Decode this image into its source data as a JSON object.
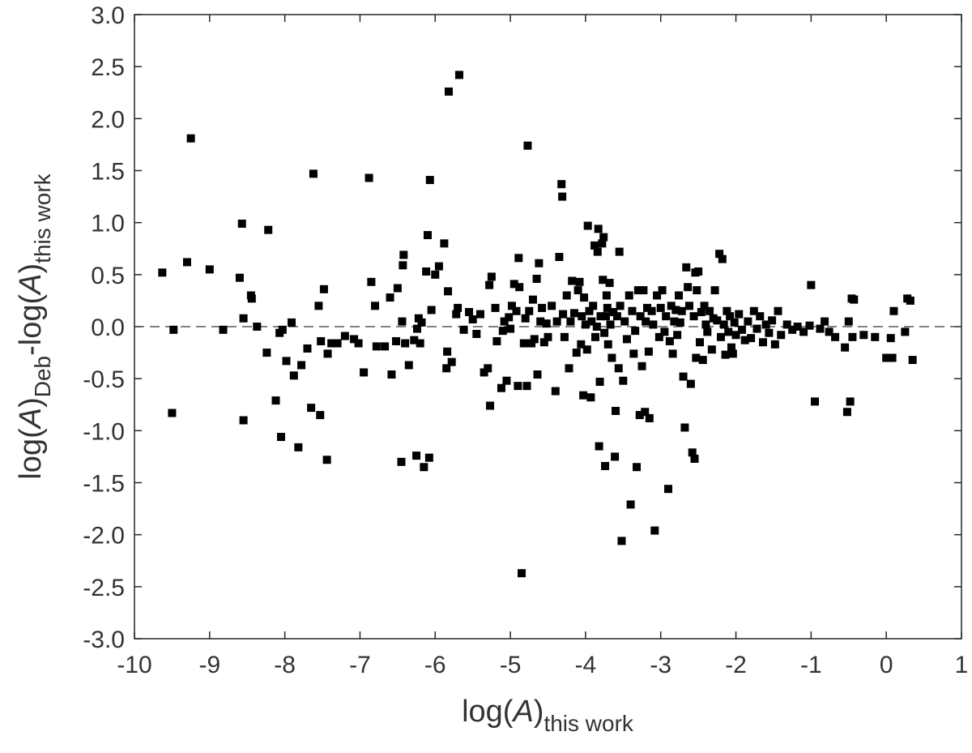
{
  "chart_data": {
    "type": "scatter",
    "xlim": [
      -10,
      1
    ],
    "ylim": [
      -3.0,
      3.0
    ],
    "x_ticks": [
      -10,
      -9,
      -8,
      -7,
      -6,
      -5,
      -4,
      -3,
      -2,
      -1,
      0,
      1
    ],
    "x_tick_labels": [
      "-10",
      "-9",
      "-8",
      "-7",
      "-6",
      "-5",
      "-4",
      "-3",
      "-2",
      "-1",
      "0",
      "1"
    ],
    "y_ticks": [
      3.0,
      2.5,
      2.0,
      1.5,
      1.0,
      0.5,
      0.0,
      -0.5,
      -1.0,
      -1.5,
      -2.0,
      -2.5,
      -3.0
    ],
    "y_tick_labels": [
      "3.0",
      "2.5",
      "2.0",
      "1.5",
      "1.0",
      "0.5",
      "0.0",
      "-0.5",
      "-1.0",
      "-1.5",
      "-2.0",
      "-2.5",
      "-3.0"
    ],
    "xlabel": {
      "main": "log(",
      "italic": "A",
      "close": ")",
      "sub": "this work"
    },
    "ylabel": {
      "main": "log(",
      "italic": "A",
      "close": ")",
      "sub": "Deb",
      "mid": "-log(",
      "italic2": "A",
      "close2": ")",
      "sub2": "this work"
    },
    "reference_line": {
      "y": 0.0,
      "style": "dashed",
      "color": "#000000"
    },
    "grid": false,
    "marker": {
      "shape": "square",
      "color": "#000000"
    },
    "points": [
      [
        -9.63,
        0.52
      ],
      [
        -9.5,
        -0.83
      ],
      [
        -9.48,
        -0.03
      ],
      [
        -9.3,
        0.62
      ],
      [
        -9.25,
        1.81
      ],
      [
        -9.0,
        0.55
      ],
      [
        -8.82,
        -0.03
      ],
      [
        -8.6,
        0.47
      ],
      [
        -8.57,
        0.99
      ],
      [
        -8.55,
        0.08
      ],
      [
        -8.55,
        -0.9
      ],
      [
        -8.45,
        0.3
      ],
      [
        -8.44,
        0.27
      ],
      [
        -8.37,
        0.0
      ],
      [
        -8.24,
        -0.25
      ],
      [
        -8.22,
        0.93
      ],
      [
        -8.12,
        -0.71
      ],
      [
        -8.07,
        -0.06
      ],
      [
        -8.05,
        -1.06
      ],
      [
        -8.03,
        -0.03
      ],
      [
        -7.98,
        -0.33
      ],
      [
        -7.91,
        0.04
      ],
      [
        -7.88,
        -0.47
      ],
      [
        -7.82,
        -1.16
      ],
      [
        -7.78,
        -0.37
      ],
      [
        -7.7,
        -0.21
      ],
      [
        -7.65,
        -0.78
      ],
      [
        -7.62,
        1.47
      ],
      [
        -7.55,
        0.2
      ],
      [
        -7.53,
        -0.85
      ],
      [
        -7.52,
        -0.14
      ],
      [
        -7.48,
        0.36
      ],
      [
        -7.44,
        -1.28
      ],
      [
        -7.43,
        -0.26
      ],
      [
        -7.38,
        -0.16
      ],
      [
        -7.3,
        -0.16
      ],
      [
        -7.2,
        -0.09
      ],
      [
        -7.08,
        -0.12
      ],
      [
        -7.02,
        -0.16
      ],
      [
        -6.95,
        -0.44
      ],
      [
        -6.88,
        1.43
      ],
      [
        -6.85,
        0.43
      ],
      [
        -6.8,
        0.2
      ],
      [
        -6.78,
        -0.19
      ],
      [
        -6.67,
        -0.19
      ],
      [
        -6.6,
        0.28
      ],
      [
        -6.58,
        -0.46
      ],
      [
        -6.52,
        -0.14
      ],
      [
        -6.5,
        0.37
      ],
      [
        -6.45,
        -1.3
      ],
      [
        -6.44,
        0.05
      ],
      [
        -6.43,
        0.59
      ],
      [
        -6.42,
        0.69
      ],
      [
        -6.4,
        -0.16
      ],
      [
        -6.35,
        -0.37
      ],
      [
        -6.28,
        -0.13
      ],
      [
        -6.25,
        -1.24
      ],
      [
        -6.24,
        -0.02
      ],
      [
        -6.22,
        0.08
      ],
      [
        -6.2,
        -0.16
      ],
      [
        -6.18,
        0.04
      ],
      [
        -6.15,
        -1.35
      ],
      [
        -6.12,
        0.53
      ],
      [
        -6.1,
        0.88
      ],
      [
        -6.08,
        -1.26
      ],
      [
        -6.07,
        1.41
      ],
      [
        -6.05,
        0.16
      ],
      [
        -6.0,
        0.5
      ],
      [
        -5.95,
        0.58
      ],
      [
        -5.88,
        0.8
      ],
      [
        -5.85,
        -0.4
      ],
      [
        -5.84,
        -0.24
      ],
      [
        -5.83,
        0.34
      ],
      [
        -5.82,
        2.26
      ],
      [
        -5.78,
        -0.34
      ],
      [
        -5.72,
        0.12
      ],
      [
        -5.7,
        0.18
      ],
      [
        -5.68,
        2.42
      ],
      [
        -5.62,
        -0.03
      ],
      [
        -5.55,
        0.14
      ],
      [
        -5.5,
        0.07
      ],
      [
        -5.45,
        -0.07
      ],
      [
        -5.4,
        0.12
      ],
      [
        -5.35,
        -0.44
      ],
      [
        -5.3,
        -0.4
      ],
      [
        -5.28,
        0.4
      ],
      [
        -5.27,
        -0.76
      ],
      [
        -5.25,
        0.48
      ],
      [
        -5.2,
        0.18
      ],
      [
        -5.18,
        -0.14
      ],
      [
        -5.12,
        -0.59
      ],
      [
        -5.1,
        -0.04
      ],
      [
        -5.08,
        0.05
      ],
      [
        -5.05,
        -0.52
      ],
      [
        -5.02,
        0.09
      ],
      [
        -5.0,
        -0.02
      ],
      [
        -4.98,
        0.2
      ],
      [
        -4.95,
        0.41
      ],
      [
        -4.92,
        0.15
      ],
      [
        -4.9,
        -0.57
      ],
      [
        -4.89,
        0.66
      ],
      [
        -4.88,
        0.38
      ],
      [
        -4.85,
        -2.37
      ],
      [
        -4.82,
        -0.16
      ],
      [
        -4.8,
        0.08
      ],
      [
        -4.78,
        -0.57
      ],
      [
        -4.77,
        1.74
      ],
      [
        -4.75,
        0.15
      ],
      [
        -4.72,
        -0.16
      ],
      [
        -4.7,
        0.26
      ],
      [
        -4.68,
        -0.12
      ],
      [
        -4.65,
        0.46
      ],
      [
        -4.64,
        -0.46
      ],
      [
        -4.62,
        0.61
      ],
      [
        -4.6,
        0.05
      ],
      [
        -4.58,
        0.18
      ],
      [
        -4.55,
        -0.15
      ],
      [
        -4.52,
        0.03
      ],
      [
        -4.5,
        -0.1
      ],
      [
        -4.45,
        0.2
      ],
      [
        -4.4,
        -0.62
      ],
      [
        -4.38,
        0.05
      ],
      [
        -4.35,
        0.67
      ],
      [
        -4.32,
        1.37
      ],
      [
        -4.31,
        1.25
      ],
      [
        -4.3,
        0.12
      ],
      [
        -4.28,
        -0.1
      ],
      [
        -4.25,
        0.3
      ],
      [
        -4.22,
        -0.4
      ],
      [
        -4.2,
        0.05
      ],
      [
        -4.18,
        0.44
      ],
      [
        -4.15,
        0.13
      ],
      [
        -4.12,
        -0.25
      ],
      [
        -4.1,
        0.35
      ],
      [
        -4.08,
        0.43
      ],
      [
        -4.06,
        -0.17
      ],
      [
        -4.05,
        0.1
      ],
      [
        -4.03,
        -0.66
      ],
      [
        -4.02,
        0.28
      ],
      [
        -4.0,
        0.02
      ],
      [
        -3.98,
        -0.22
      ],
      [
        -3.97,
        0.97
      ],
      [
        -3.95,
        0.15
      ],
      [
        -3.93,
        -0.68
      ],
      [
        -3.92,
        0.05
      ],
      [
        -3.9,
        0.2
      ],
      [
        -3.88,
        0.78
      ],
      [
        -3.87,
        -0.1
      ],
      [
        -3.85,
        0.0
      ],
      [
        -3.84,
        0.72
      ],
      [
        -3.83,
        0.94
      ],
      [
        -3.82,
        -1.15
      ],
      [
        -3.81,
        -0.53
      ],
      [
        -3.8,
        0.1
      ],
      [
        -3.78,
        0.8
      ],
      [
        -3.77,
        0.45
      ],
      [
        -3.76,
        0.86
      ],
      [
        -3.75,
        -0.06
      ],
      [
        -3.74,
        -1.34
      ],
      [
        -3.73,
        0.1
      ],
      [
        -3.72,
        0.3
      ],
      [
        -3.71,
        0.18
      ],
      [
        -3.7,
        -0.17
      ],
      [
        -3.68,
        0.42
      ],
      [
        -3.67,
        0.02
      ],
      [
        -3.65,
        -0.3
      ],
      [
        -3.63,
        0.14
      ],
      [
        -3.61,
        -1.25
      ],
      [
        -3.6,
        -0.81
      ],
      [
        -3.58,
        0.1
      ],
      [
        -3.56,
        -0.4
      ],
      [
        -3.55,
        0.72
      ],
      [
        -3.54,
        0.2
      ],
      [
        -3.52,
        -2.06
      ],
      [
        -3.5,
        -0.52
      ],
      [
        -3.48,
        0.05
      ],
      [
        -3.45,
        -0.12
      ],
      [
        -3.42,
        0.3
      ],
      [
        -3.4,
        -1.71
      ],
      [
        -3.38,
        0.15
      ],
      [
        -3.36,
        -0.26
      ],
      [
        -3.34,
        -0.04
      ],
      [
        -3.32,
        -1.35
      ],
      [
        -3.3,
        0.35
      ],
      [
        -3.28,
        -0.85
      ],
      [
        -3.27,
        0.1
      ],
      [
        -3.25,
        -0.38
      ],
      [
        -3.23,
        0.35
      ],
      [
        -3.21,
        -0.82
      ],
      [
        -3.2,
        0.05
      ],
      [
        -3.18,
        0.18
      ],
      [
        -3.16,
        -0.24
      ],
      [
        -3.15,
        -0.88
      ],
      [
        -3.12,
        0.15
      ],
      [
        -3.1,
        0.02
      ],
      [
        -3.08,
        -1.96
      ],
      [
        -3.05,
        0.3
      ],
      [
        -3.02,
        -0.1
      ],
      [
        -3.0,
        0.18
      ],
      [
        -2.98,
        0.35
      ],
      [
        -2.95,
        -0.05
      ],
      [
        -2.93,
        0.1
      ],
      [
        -2.9,
        -1.56
      ],
      [
        -2.88,
        -0.14
      ],
      [
        -2.86,
        0.2
      ],
      [
        -2.84,
        -0.26
      ],
      [
        -2.82,
        0.05
      ],
      [
        -2.8,
        0.16
      ],
      [
        -2.78,
        -0.08
      ],
      [
        -2.76,
        0.3
      ],
      [
        -2.74,
        0.04
      ],
      [
        -2.72,
        0.15
      ],
      [
        -2.7,
        -0.48
      ],
      [
        -2.68,
        -0.97
      ],
      [
        -2.66,
        0.57
      ],
      [
        -2.64,
        0.38
      ],
      [
        -2.62,
        0.2
      ],
      [
        -2.6,
        -0.55
      ],
      [
        -2.58,
        -1.21
      ],
      [
        -2.56,
        0.1
      ],
      [
        -2.55,
        -1.27
      ],
      [
        -2.54,
        0.52
      ],
      [
        -2.53,
        -0.3
      ],
      [
        -2.52,
        0.35
      ],
      [
        -2.5,
        0.53
      ],
      [
        -2.48,
        -0.15
      ],
      [
        -2.46,
        0.14
      ],
      [
        -2.44,
        -0.32
      ],
      [
        -2.42,
        0.2
      ],
      [
        -2.4,
        0.02
      ],
      [
        -2.38,
        -0.05
      ],
      [
        -2.35,
        0.15
      ],
      [
        -2.32,
        -0.22
      ],
      [
        -2.3,
        0.08
      ],
      [
        -2.28,
        0.35
      ],
      [
        -2.25,
        0.06
      ],
      [
        -2.22,
        0.7
      ],
      [
        -2.2,
        -0.1
      ],
      [
        -2.18,
        0.65
      ],
      [
        -2.16,
        0.02
      ],
      [
        -2.14,
        -0.27
      ],
      [
        -2.12,
        0.15
      ],
      [
        -2.1,
        -0.05
      ],
      [
        -2.08,
        0.1
      ],
      [
        -2.06,
        -0.2
      ],
      [
        -2.04,
        -0.26
      ],
      [
        -2.02,
        0.04
      ],
      [
        -2.0,
        -0.08
      ],
      [
        -1.96,
        0.12
      ],
      [
        -1.92,
        -0.03
      ],
      [
        -1.88,
        -0.13
      ],
      [
        -1.84,
        0.05
      ],
      [
        -1.8,
        -0.11
      ],
      [
        -1.76,
        0.15
      ],
      [
        -1.72,
        -0.02
      ],
      [
        -1.68,
        0.1
      ],
      [
        -1.64,
        -0.15
      ],
      [
        -1.6,
        0.02
      ],
      [
        -1.56,
        -0.06
      ],
      [
        -1.52,
        0.06
      ],
      [
        -1.48,
        -0.17
      ],
      [
        -1.44,
        0.15
      ],
      [
        -1.4,
        -0.08
      ],
      [
        -1.32,
        0.02
      ],
      [
        -1.25,
        -0.03
      ],
      [
        -1.18,
        0.0
      ],
      [
        -1.1,
        -0.05
      ],
      [
        -1.02,
        0.01
      ],
      [
        -1.0,
        0.4
      ],
      [
        -0.95,
        -0.72
      ],
      [
        -0.88,
        -0.02
      ],
      [
        -0.82,
        0.05
      ],
      [
        -0.76,
        -0.05
      ],
      [
        -0.68,
        -0.1
      ],
      [
        -0.55,
        -0.2
      ],
      [
        -0.52,
        -0.82
      ],
      [
        -0.5,
        0.05
      ],
      [
        -0.48,
        -0.72
      ],
      [
        -0.46,
        0.27
      ],
      [
        -0.45,
        -0.1
      ],
      [
        -0.43,
        0.26
      ],
      [
        -0.3,
        -0.08
      ],
      [
        -0.15,
        -0.1
      ],
      [
        0.0,
        -0.3
      ],
      [
        0.06,
        -0.11
      ],
      [
        0.08,
        -0.3
      ],
      [
        0.1,
        0.15
      ],
      [
        0.25,
        -0.05
      ],
      [
        0.28,
        0.27
      ],
      [
        0.32,
        0.25
      ],
      [
        0.35,
        -0.32
      ]
    ]
  }
}
